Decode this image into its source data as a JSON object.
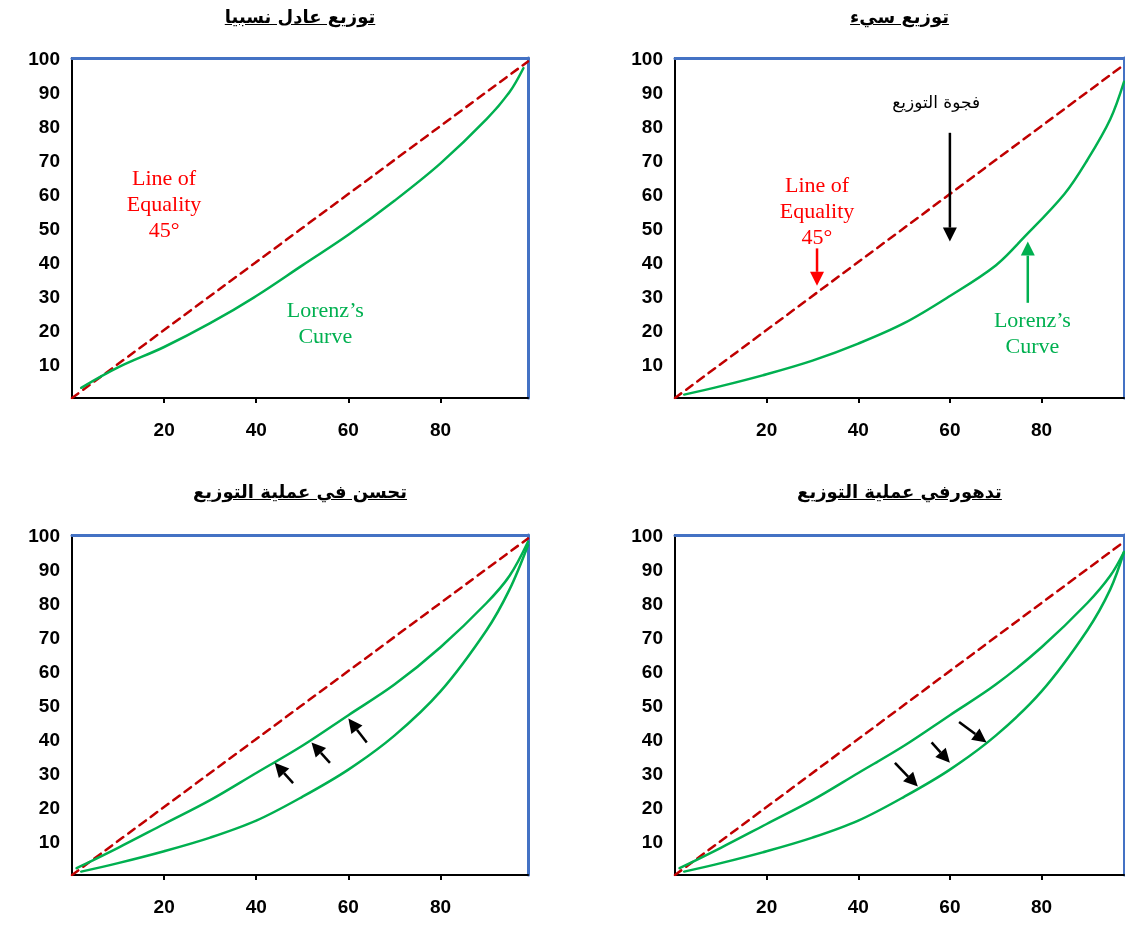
{
  "chart_data": [
    {
      "type": "line",
      "title": "توزيع عادل نسبيا",
      "xlim": [
        0,
        99
      ],
      "xticks": [
        20,
        40,
        60,
        80
      ],
      "ylim": [
        0,
        100
      ],
      "yticks": [
        10,
        20,
        30,
        40,
        50,
        60,
        70,
        80,
        90,
        100
      ],
      "marker": "none",
      "grid": false,
      "series": [
        {
          "name": "Line of Equality 45°",
          "color": "#c00000",
          "line_style": "dashed",
          "x": [
            0,
            99
          ],
          "values": [
            0,
            99
          ]
        },
        {
          "name": "Lorenz’s Curve",
          "color": "#00b050",
          "line_style": "solid",
          "x": [
            2,
            10,
            20,
            30,
            40,
            50,
            60,
            70,
            80,
            90,
            95,
            98
          ],
          "values": [
            3,
            9,
            15,
            22,
            30,
            39,
            48,
            58,
            69,
            82,
            90,
            97
          ]
        }
      ]
    },
    {
      "type": "line",
      "title": "توزيع سيء",
      "xlim": [
        0,
        98
      ],
      "xticks": [
        20,
        40,
        60,
        80
      ],
      "ylim": [
        0,
        100
      ],
      "yticks": [
        10,
        20,
        30,
        40,
        50,
        60,
        70,
        80,
        90,
        100
      ],
      "marker": "none",
      "grid": false,
      "annotations": [
        "فجوة التوزيع"
      ],
      "series": [
        {
          "name": "Line of Equality 45°",
          "color": "#c00000",
          "line_style": "dashed",
          "x": [
            0,
            98
          ],
          "values": [
            0,
            98
          ]
        },
        {
          "name": "Lorenz’s Curve",
          "color": "#00b050",
          "line_style": "solid",
          "x": [
            2,
            10,
            20,
            30,
            40,
            50,
            60,
            70,
            76,
            85,
            90,
            95,
            98
          ],
          "values": [
            1,
            3.5,
            7,
            11,
            16,
            22,
            30,
            39,
            47,
            60,
            70,
            82,
            93
          ]
        }
      ]
    },
    {
      "type": "line",
      "title": "تحسن في عملية التوزيع",
      "xlim": [
        0,
        99
      ],
      "xticks": [
        20,
        40,
        60,
        80
      ],
      "ylim": [
        0,
        100
      ],
      "yticks": [
        10,
        20,
        30,
        40,
        50,
        60,
        70,
        80,
        90,
        100
      ],
      "marker": "none",
      "grid": false,
      "series": [
        {
          "color": "#c00000",
          "line_style": "dashed",
          "x": [
            0,
            99
          ],
          "values": [
            0,
            99
          ]
        },
        {
          "color": "#00b050",
          "line_style": "solid",
          "x": [
            1,
            10,
            20,
            30,
            40,
            50,
            60,
            70,
            80,
            90,
            95,
            99
          ],
          "values": [
            2,
            8,
            15,
            22,
            30,
            38,
            47,
            56,
            67,
            80,
            88,
            98
          ]
        },
        {
          "color": "#00b050",
          "line_style": "solid",
          "x": [
            2,
            10,
            20,
            30,
            40,
            50,
            60,
            70,
            80,
            90,
            95,
            99
          ],
          "values": [
            1,
            3.5,
            7,
            11,
            16,
            23,
            31,
            41,
            54,
            72,
            84,
            97
          ]
        }
      ]
    },
    {
      "type": "line",
      "title": "تدهورفي عملية التوزيع",
      "xlim": [
        0,
        98
      ],
      "xticks": [
        20,
        40,
        60,
        80
      ],
      "ylim": [
        0,
        100
      ],
      "yticks": [
        10,
        20,
        30,
        40,
        50,
        60,
        70,
        80,
        90,
        100
      ],
      "marker": "none",
      "grid": false,
      "series": [
        {
          "color": "#c00000",
          "line_style": "dashed",
          "x": [
            0,
            98
          ],
          "values": [
            0,
            98
          ]
        },
        {
          "color": "#00b050",
          "line_style": "solid",
          "x": [
            1,
            10,
            20,
            30,
            40,
            50,
            60,
            70,
            80,
            90,
            95,
            98
          ],
          "values": [
            2,
            8,
            15,
            22,
            30,
            38,
            47,
            56,
            67,
            80,
            88,
            95
          ]
        },
        {
          "color": "#00b050",
          "line_style": "solid",
          "x": [
            2,
            10,
            20,
            30,
            40,
            50,
            60,
            70,
            80,
            90,
            95,
            98
          ],
          "values": [
            1,
            3.5,
            7,
            11,
            16,
            23,
            31,
            41,
            54,
            72,
            84,
            95
          ]
        }
      ]
    }
  ]
}
